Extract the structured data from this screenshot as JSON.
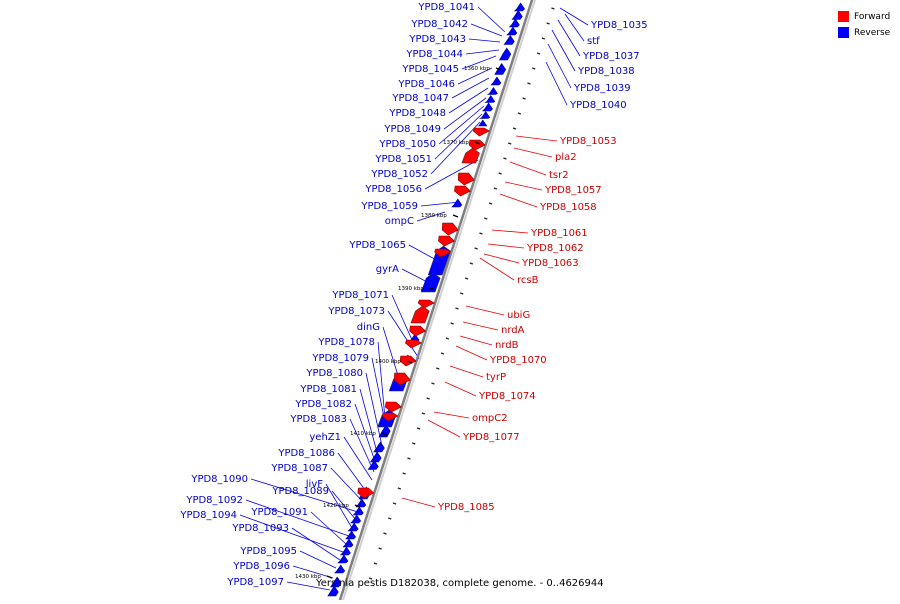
{
  "diagram": {
    "caption": "Yersinia pestis D182038, complete genome. - 0..4626944",
    "colors": {
      "forward": "#ff0000",
      "reverse": "#0000ff",
      "label_forward": "#cc0000",
      "label_reverse": "#0000cc",
      "backbone": "#7f7f7f"
    },
    "legend": [
      {
        "label": "Forward",
        "color": "#ff0000"
      },
      {
        "label": "Reverse",
        "color": "#0000ff"
      }
    ],
    "ticks": [
      "1360 kbp",
      "1370 kbp",
      "1380 kbp",
      "1390 kbp",
      "1400 kbp",
      "1410 kbp",
      "1420 kbp",
      "1430 kbp"
    ],
    "reverse_labels": [
      "YPD8_1041",
      "YPD8_1042",
      "YPD8_1043",
      "YPD8_1044",
      "YPD8_1045",
      "YPD8_1046",
      "YPD8_1047",
      "YPD8_1048",
      "YPD8_1049",
      "YPD8_1050",
      "YPD8_1051",
      "YPD8_1052",
      "YPD8_1056",
      "YPD8_1059",
      "ompC",
      "YPD8_1065",
      "gyrA",
      "YPD8_1071",
      "YPD8_1073",
      "dinG",
      "YPD8_1078",
      "YPD8_1079",
      "YPD8_1080",
      "YPD8_1081",
      "YPD8_1082",
      "YPD8_1083",
      "yehZ1",
      "YPD8_1086",
      "YPD8_1087",
      "YPD8_1090",
      "YPD8_1089",
      "livF",
      "YPD8_1092",
      "YPD8_1091",
      "YPD8_1094",
      "YPD8_1093",
      "YPD8_1095",
      "YPD8_1096",
      "YPD8_1097"
    ],
    "right_labels": [
      "YPD8_1035",
      "stf",
      "YPD8_1037",
      "YPD8_1038",
      "YPD8_1039",
      "YPD8_1040"
    ],
    "forward_labels": [
      "YPD8_1053",
      "pla2",
      "tsr2",
      "YPD8_1057",
      "YPD8_1058",
      "YPD8_1061",
      "YPD8_1062",
      "YPD8_1063",
      "rcsB",
      "ubiG",
      "nrdA",
      "nrdB",
      "YPD8_1070",
      "tyrP",
      "YPD8_1074",
      "ompC2",
      "YPD8_1077",
      "YPD8_1085"
    ]
  }
}
